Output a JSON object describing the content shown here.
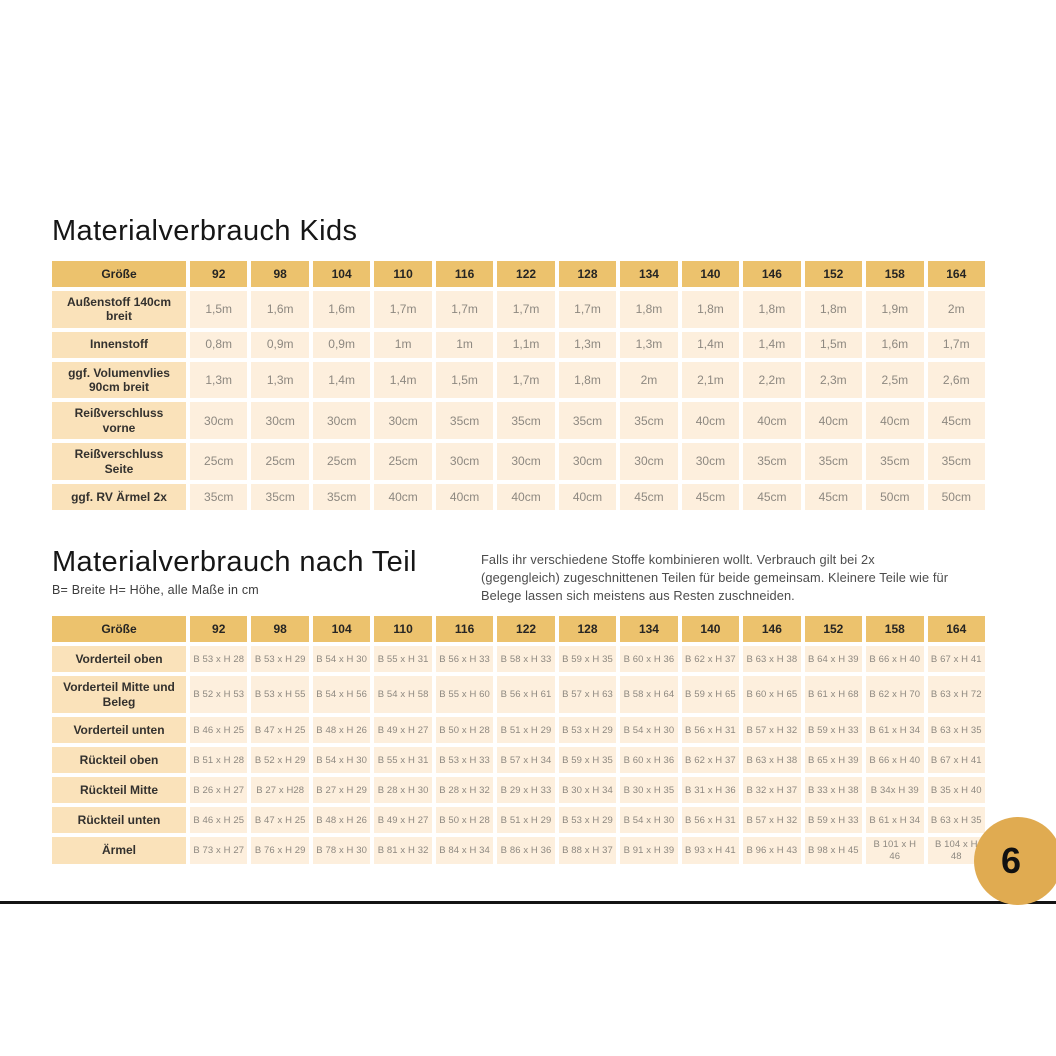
{
  "section1": {
    "title": "Materialverbrauch Kids",
    "table": {
      "corner_label": "Größe",
      "columns": [
        "92",
        "98",
        "104",
        "110",
        "116",
        "122",
        "128",
        "134",
        "140",
        "146",
        "152",
        "158",
        "164"
      ],
      "rows": [
        {
          "label": "Außenstoff 140cm breit",
          "values": [
            "1,5m",
            "1,6m",
            "1,6m",
            "1,7m",
            "1,7m",
            "1,7m",
            "1,7m",
            "1,8m",
            "1,8m",
            "1,8m",
            "1,8m",
            "1,9m",
            "2m"
          ]
        },
        {
          "label": "Innenstoff",
          "values": [
            "0,8m",
            "0,9m",
            "0,9m",
            "1m",
            "1m",
            "1,1m",
            "1,3m",
            "1,3m",
            "1,4m",
            "1,4m",
            "1,5m",
            "1,6m",
            "1,7m"
          ]
        },
        {
          "label": "ggf. Volumenvlies 90cm breit",
          "values": [
            "1,3m",
            "1,3m",
            "1,4m",
            "1,4m",
            "1,5m",
            "1,7m",
            "1,8m",
            "2m",
            "2,1m",
            "2,2m",
            "2,3m",
            "2,5m",
            "2,6m"
          ]
        },
        {
          "label": "Reißverschluss vorne",
          "values": [
            "30cm",
            "30cm",
            "30cm",
            "30cm",
            "35cm",
            "35cm",
            "35cm",
            "35cm",
            "40cm",
            "40cm",
            "40cm",
            "40cm",
            "45cm"
          ]
        },
        {
          "label": "Reißverschluss Seite",
          "values": [
            "25cm",
            "25cm",
            "25cm",
            "25cm",
            "30cm",
            "30cm",
            "30cm",
            "30cm",
            "30cm",
            "35cm",
            "35cm",
            "35cm",
            "35cm"
          ]
        },
        {
          "label": "ggf. RV Ärmel 2x",
          "values": [
            "35cm",
            "35cm",
            "35cm",
            "40cm",
            "40cm",
            "40cm",
            "40cm",
            "45cm",
            "45cm",
            "45cm",
            "45cm",
            "50cm",
            "50cm"
          ]
        }
      ]
    }
  },
  "section2": {
    "title": "Materialverbrauch nach Teil",
    "subtitle": "B= Breite H= Höhe, alle Maße in cm",
    "note": "Falls ihr verschiedene Stoffe kombinieren wollt. Verbrauch gilt bei 2x (gegengleich) zugeschnittenen Teilen für beide gemeinsam. Kleinere Teile wie für Belege lassen sich meistens aus Resten zuschneiden.",
    "table": {
      "corner_label": "Größe",
      "columns": [
        "92",
        "98",
        "104",
        "110",
        "116",
        "122",
        "128",
        "134",
        "140",
        "146",
        "152",
        "158",
        "164"
      ],
      "rows": [
        {
          "label": "Vorderteil oben",
          "values": [
            "B 53 x H 28",
            "B 53 x H 29",
            "B 54 x H 30",
            "B 55 x H 31",
            "B 56 x H 33",
            "B 58 x H 33",
            "B 59 x H 35",
            "B 60 x H 36",
            "B 62 x H 37",
            "B 63 x H 38",
            "B 64 x H 39",
            "B 66 x H 40",
            "B 67 x H 41"
          ]
        },
        {
          "label": "Vorderteil Mitte und Beleg",
          "values": [
            "B 52 x H 53",
            "B 53 x H 55",
            "B 54 x H 56",
            "B 54 x H 58",
            "B 55 x H 60",
            "B 56 x H 61",
            "B 57 x H 63",
            "B 58 x H 64",
            "B 59 x H 65",
            "B 60 x H 65",
            "B 61 x H 68",
            "B 62 x H 70",
            "B 63 x H 72"
          ]
        },
        {
          "label": "Vorderteil unten",
          "values": [
            "B 46 x H 25",
            "B 47 x H 25",
            "B 48 x H 26",
            "B 49 x H 27",
            "B 50 x H 28",
            "B 51 x H 29",
            "B 53 x H 29",
            "B 54 x H 30",
            "B 56 x H 31",
            "B 57 x H 32",
            "B 59 x H 33",
            "B 61 x H 34",
            "B 63 x H 35"
          ]
        },
        {
          "label": "Rückteil oben",
          "values": [
            "B 51 x H 28",
            "B 52 x H 29",
            "B 54 x H 30",
            "B 55 x H 31",
            "B 53 x H 33",
            "B 57 x H 34",
            "B 59 x H 35",
            "B 60 x H 36",
            "B 62 x H 37",
            "B 63 x H 38",
            "B 65 x H 39",
            "B 66 x H 40",
            "B 67 x H 41"
          ]
        },
        {
          "label": "Rückteil Mitte",
          "values": [
            "B 26 x H 27",
            "B 27 x H28",
            "B 27 x H 29",
            "B 28 x H 30",
            "B 28 x H 32",
            "B 29 x H 33",
            "B 30 x H 34",
            "B 30 x H 35",
            "B 31 x H 36",
            "B 32 x H 37",
            "B 33 x H 38",
            "B 34x H 39",
            "B 35 x H 40"
          ]
        },
        {
          "label": "Rückteil unten",
          "values": [
            "B 46 x H 25",
            "B 47 x H 25",
            "B 48 x H 26",
            "B 49 x H 27",
            "B 50 x H 28",
            "B 51 x H 29",
            "B 53 x H 29",
            "B 54 x H 30",
            "B 56 x H 31",
            "B 57 x H 32",
            "B 59 x H 33",
            "B 61 x H 34",
            "B 63 x H 35"
          ]
        },
        {
          "label": "Ärmel",
          "values": [
            "B 73 x H 27",
            "B 76 x H 29",
            "B 78 x H 30",
            "B 81 x H 32",
            "B 84 x H 34",
            "B 86 x H 36",
            "B 88 x H 37",
            "B 91 x H 39",
            "B 93 x H 41",
            "B 96 x H 43",
            "B 98 x H 45",
            "B 101 x H 46",
            "B 104 x H 48"
          ]
        }
      ]
    }
  },
  "footer": {
    "page_number": "6"
  }
}
